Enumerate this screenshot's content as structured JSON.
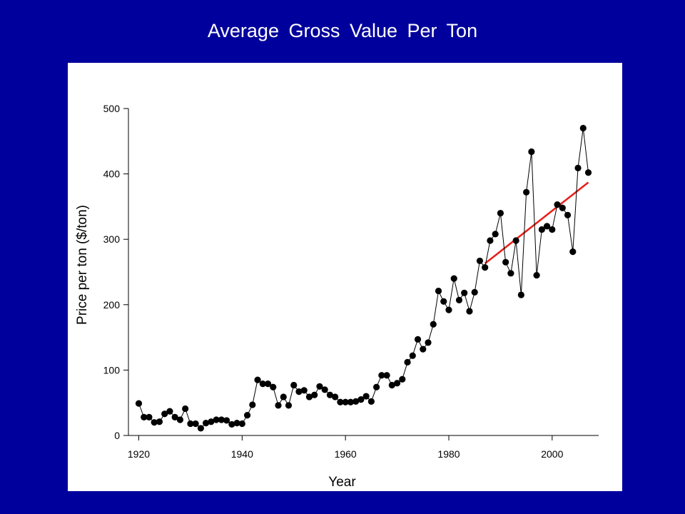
{
  "slide": {
    "title": "Average Gross Value Per Ton",
    "background_color": "#00009c",
    "panel_color": "#ffffff"
  },
  "chart_data": {
    "type": "line",
    "title": "Average Gross Value Per Ton",
    "xlabel": "Year",
    "ylabel": "Price per ton ($/ton)",
    "xlim": [
      1918,
      2009
    ],
    "ylim": [
      0,
      500
    ],
    "xticks": [
      1920,
      1940,
      1960,
      1980,
      2000
    ],
    "yticks": [
      0,
      100,
      200,
      300,
      400,
      500
    ],
    "grid": false,
    "legend": "none",
    "series": [
      {
        "marker": "circle",
        "color": "#000000",
        "x": [
          1920,
          1921,
          1922,
          1923,
          1924,
          1925,
          1926,
          1927,
          1928,
          1929,
          1930,
          1931,
          1932,
          1933,
          1934,
          1935,
          1936,
          1937,
          1938,
          1939,
          1940,
          1941,
          1942,
          1943,
          1944,
          1945,
          1946,
          1947,
          1948,
          1949,
          1950,
          1951,
          1952,
          1953,
          1954,
          1955,
          1956,
          1957,
          1958,
          1959,
          1960,
          1961,
          1962,
          1963,
          1964,
          1965,
          1966,
          1967,
          1968,
          1969,
          1970,
          1971,
          1972,
          1973,
          1974,
          1975,
          1976,
          1977,
          1978,
          1979,
          1980,
          1981,
          1982,
          1983,
          1984,
          1985,
          1986,
          1987,
          1988,
          1989,
          1990,
          1991,
          1992,
          1993,
          1994,
          1995,
          1996,
          1997,
          1998,
          1999,
          2000,
          2001,
          2002,
          2003,
          2004,
          2005,
          2006,
          2007
        ],
        "y": [
          49,
          28,
          28,
          20,
          21,
          33,
          37,
          28,
          24,
          41,
          18,
          18,
          11,
          19,
          21,
          24,
          24,
          23,
          17,
          19,
          18,
          31,
          47,
          85,
          79,
          79,
          74,
          46,
          59,
          46,
          77,
          67,
          69,
          59,
          62,
          75,
          70,
          62,
          59,
          51,
          51,
          51,
          52,
          55,
          60,
          52,
          74,
          92,
          92,
          77,
          80,
          86,
          112,
          122,
          147,
          132,
          142,
          170,
          221,
          205,
          192,
          240,
          207,
          218,
          190,
          219,
          267,
          257,
          298,
          308,
          340,
          265,
          248,
          298,
          215,
          372,
          434,
          245,
          315,
          320,
          315,
          353,
          348,
          337,
          281,
          409,
          470,
          402
        ]
      },
      {
        "name": "trend",
        "type": "trendline",
        "color": "#e8201a",
        "x": [
          1987,
          2007
        ],
        "y": [
          263,
          387
        ]
      }
    ]
  }
}
